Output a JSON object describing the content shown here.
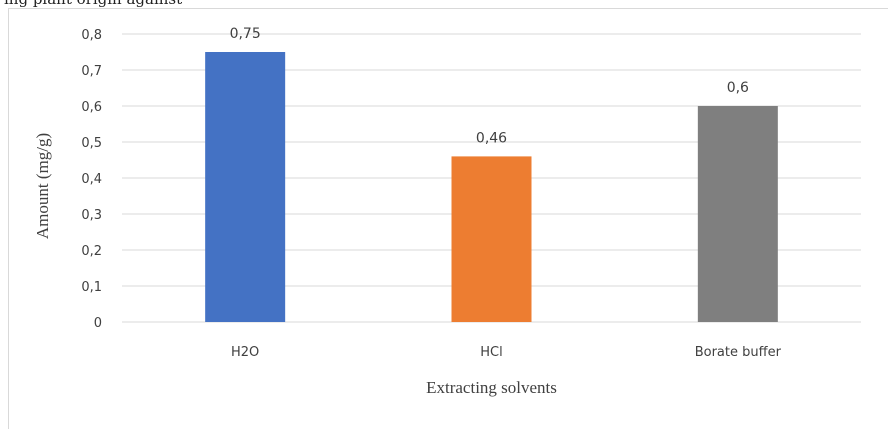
{
  "clipped_text": "ing plant origin against",
  "chart_data": {
    "type": "bar",
    "categories": [
      "H2O",
      "HCl",
      "Borate buffer"
    ],
    "values": [
      0.75,
      0.46,
      0.6
    ],
    "data_labels": [
      "0,75",
      "0,46",
      "0,6"
    ],
    "colors": [
      "#4472c4",
      "#ed7d31",
      "#7f7f7f"
    ],
    "xlabel": "Extracting  solvents",
    "ylabel": "Amount (mg/g)",
    "ylim": [
      0,
      0.8
    ],
    "yticks": [
      "0",
      "0,1",
      "0,2",
      "0,3",
      "0,4",
      "0,5",
      "0,6",
      "0,7",
      "0,8"
    ],
    "grid": true
  }
}
